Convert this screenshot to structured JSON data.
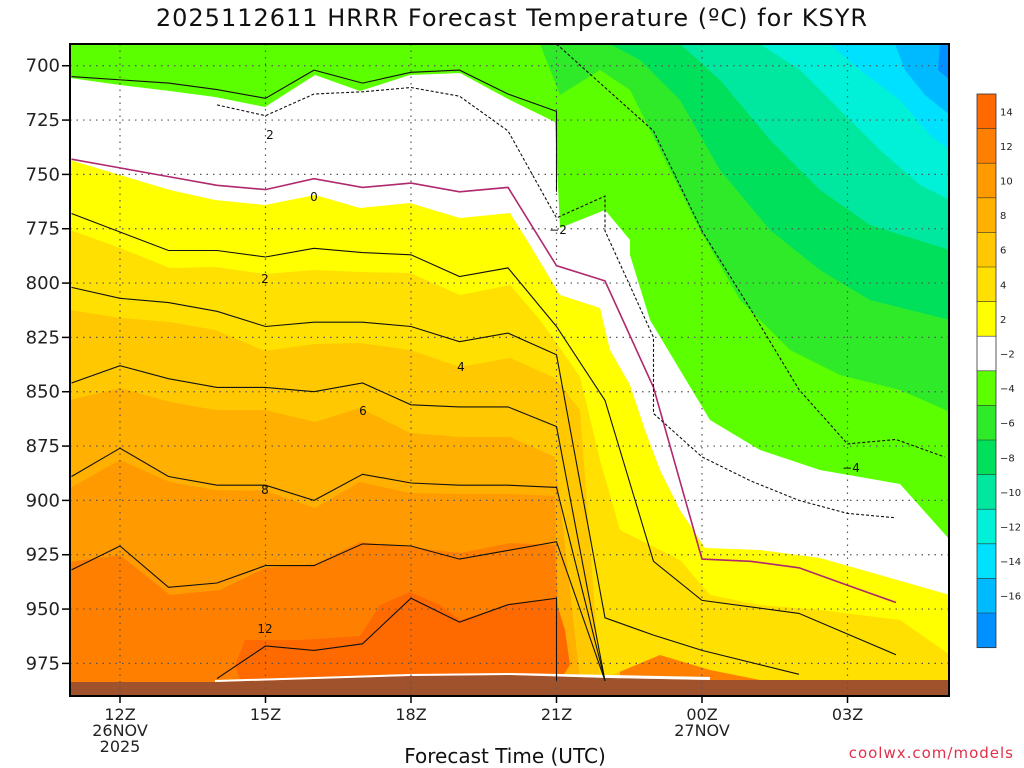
{
  "title": "2025112611 HRRR Forecast Temperature (ºC) for KSYR",
  "credit": "coolwx.com/models",
  "chart_data": {
    "type": "contour",
    "title": "2025112611 HRRR Forecast Temperature (ºC) for KSYR",
    "xlabel": "Forecast Time (UTC)",
    "ylabel": "",
    "y_axis": "pressure (hPa), inverted",
    "ylim": [
      990,
      690
    ],
    "y_ticks": [
      "700",
      "725",
      "750",
      "775",
      "800",
      "825",
      "850",
      "875",
      "900",
      "925",
      "950",
      "975"
    ],
    "x_ticks": [
      {
        "time": "12Z",
        "lines": [
          "12Z",
          "26NOV",
          "2025"
        ]
      },
      {
        "time": "15Z",
        "lines": [
          "15Z"
        ]
      },
      {
        "time": "18Z",
        "lines": [
          "18Z"
        ]
      },
      {
        "time": "21Z",
        "lines": [
          "21Z"
        ]
      },
      {
        "time": "00Z",
        "lines": [
          "00Z",
          "27NOV"
        ]
      },
      {
        "time": "03Z",
        "lines": [
          "03Z"
        ]
      }
    ],
    "grid": "dotted",
    "colorbar": {
      "position": "right",
      "labels": [
        "14",
        "12",
        "10",
        "8",
        "6",
        "4",
        "2",
        "−2",
        "−4",
        "−6",
        "−8",
        "−10",
        "−12",
        "−14",
        "−16"
      ],
      "colors": [
        "#ff6a00",
        "#ff8000",
        "#ff9b00",
        "#ffb000",
        "#ffc800",
        "#ffe000",
        "#ffff00",
        "#ffffff",
        "#5cff00",
        "#2eea29",
        "#00e05a",
        "#00e8a0",
        "#00f0d8",
        "#00e0ff",
        "#00baff",
        "#0090ff"
      ]
    },
    "contour_labels": [
      "2",
      "0",
      "−2",
      "2",
      "4",
      "6",
      "8",
      "12",
      "−4"
    ],
    "contours": [
      {
        "level": 2,
        "points": [
          [
            "11Z",
            705
          ],
          [
            "13Z",
            708
          ],
          [
            "14Z",
            711
          ],
          [
            "15Z",
            715
          ],
          [
            "16Z",
            702
          ],
          [
            "17Z",
            708
          ],
          [
            "18Z",
            703
          ],
          [
            "19Z",
            702
          ],
          [
            "20Z",
            713
          ],
          [
            "21Z",
            721
          ],
          [
            "21Z",
            758
          ]
        ]
      },
      {
        "level": 0,
        "points": [
          [
            "11Z",
            743
          ],
          [
            "12Z",
            747
          ],
          [
            "13Z",
            751
          ],
          [
            "14Z",
            755
          ],
          [
            "15Z",
            757
          ],
          [
            "16Z",
            752
          ],
          [
            "17Z",
            756
          ],
          [
            "18Z",
            754
          ],
          [
            "19Z",
            758
          ],
          [
            "20Z",
            756
          ],
          [
            "21Z",
            792
          ],
          [
            "22Z",
            799
          ],
          [
            "23Z",
            848
          ],
          [
            "00Z",
            927
          ],
          [
            "01Z",
            928
          ],
          [
            "02Z",
            931
          ],
          [
            "03Z",
            939
          ],
          [
            "04Z",
            947
          ]
        ]
      },
      {
        "level": 2,
        "points": [
          [
            "11Z",
            768
          ],
          [
            "13Z",
            785
          ],
          [
            "14Z",
            785
          ],
          [
            "15Z",
            788
          ],
          [
            "16Z",
            784
          ],
          [
            "17Z",
            786
          ],
          [
            "18Z",
            787
          ],
          [
            "19Z",
            797
          ],
          [
            "20Z",
            793
          ],
          [
            "21Z",
            820
          ],
          [
            "22Z",
            854
          ],
          [
            "23Z",
            928
          ],
          [
            "00Z",
            946
          ],
          [
            "02Z",
            952
          ],
          [
            "04Z",
            971
          ]
        ]
      },
      {
        "level": 4,
        "points": [
          [
            "11Z",
            802
          ],
          [
            "12Z",
            807
          ],
          [
            "13Z",
            809
          ],
          [
            "14Z",
            813
          ],
          [
            "15Z",
            820
          ],
          [
            "16Z",
            818
          ],
          [
            "17Z",
            818
          ],
          [
            "18Z",
            820
          ],
          [
            "19Z",
            827
          ],
          [
            "20Z",
            823
          ],
          [
            "21Z",
            833
          ],
          [
            "22Z",
            954
          ],
          [
            "23Z",
            962
          ],
          [
            "00Z",
            969
          ],
          [
            "02Z",
            980
          ]
        ]
      },
      {
        "level": 6,
        "points": [
          [
            "11Z",
            846
          ],
          [
            "12Z",
            838
          ],
          [
            "13Z",
            844
          ],
          [
            "14Z",
            848
          ],
          [
            "15Z",
            848
          ],
          [
            "16Z",
            850
          ],
          [
            "17Z",
            846
          ],
          [
            "18Z",
            856
          ],
          [
            "19Z",
            857
          ],
          [
            "20Z",
            857
          ],
          [
            "21Z",
            866
          ],
          [
            "22Z",
            983
          ]
        ]
      },
      {
        "level": 8,
        "points": [
          [
            "11Z",
            889
          ],
          [
            "12Z",
            876
          ],
          [
            "13Z",
            889
          ],
          [
            "14Z",
            893
          ],
          [
            "15Z",
            893
          ],
          [
            "16Z",
            900
          ],
          [
            "17Z",
            888
          ],
          [
            "18Z",
            892
          ],
          [
            "19Z",
            893
          ],
          [
            "20Z",
            893
          ],
          [
            "21Z",
            894
          ],
          [
            "22Z",
            983
          ]
        ]
      },
      {
        "level": 10,
        "points": [
          [
            "11Z",
            932
          ],
          [
            "12Z",
            921
          ],
          [
            "13Z",
            940
          ],
          [
            "14Z",
            938
          ],
          [
            "15Z",
            930
          ],
          [
            "16Z",
            930
          ],
          [
            "17Z",
            920
          ],
          [
            "18Z",
            921
          ],
          [
            "19Z",
            927
          ],
          [
            "20Z",
            923
          ],
          [
            "21Z",
            919
          ],
          [
            "22Z",
            983
          ]
        ]
      },
      {
        "level": 12,
        "points": [
          [
            "14Z",
            982
          ],
          [
            "15Z",
            967
          ],
          [
            "16Z",
            969
          ],
          [
            "17Z",
            966
          ],
          [
            "18Z",
            945
          ],
          [
            "19Z",
            956
          ],
          [
            "20Z",
            948
          ],
          [
            "21Z",
            945
          ],
          [
            "21Z",
            983
          ]
        ]
      },
      {
        "level": -2,
        "points": [
          [
            "14Z",
            718
          ],
          [
            "15Z",
            723
          ],
          [
            "16Z",
            713
          ],
          [
            "17Z",
            712
          ],
          [
            "18Z",
            710
          ],
          [
            "19Z",
            714
          ],
          [
            "20Z",
            730
          ],
          [
            "21Z",
            770
          ],
          [
            "22Z",
            760
          ],
          [
            "22Z",
            776
          ],
          [
            "23Z",
            825
          ],
          [
            "23Z",
            860
          ],
          [
            "00Z",
            880
          ],
          [
            "01Z",
            891
          ],
          [
            "02Z",
            900
          ],
          [
            "03Z",
            906
          ],
          [
            "04Z",
            908
          ]
        ]
      },
      {
        "level": -4,
        "points": [
          [
            "21Z",
            690
          ],
          [
            "22Z",
            710
          ],
          [
            "23Z",
            730
          ],
          [
            "00Z",
            776
          ],
          [
            "01Z",
            812
          ],
          [
            "02Z",
            849
          ],
          [
            "03Z",
            874
          ],
          [
            "04Z",
            872
          ],
          [
            "05Z",
            880
          ]
        ]
      }
    ]
  }
}
